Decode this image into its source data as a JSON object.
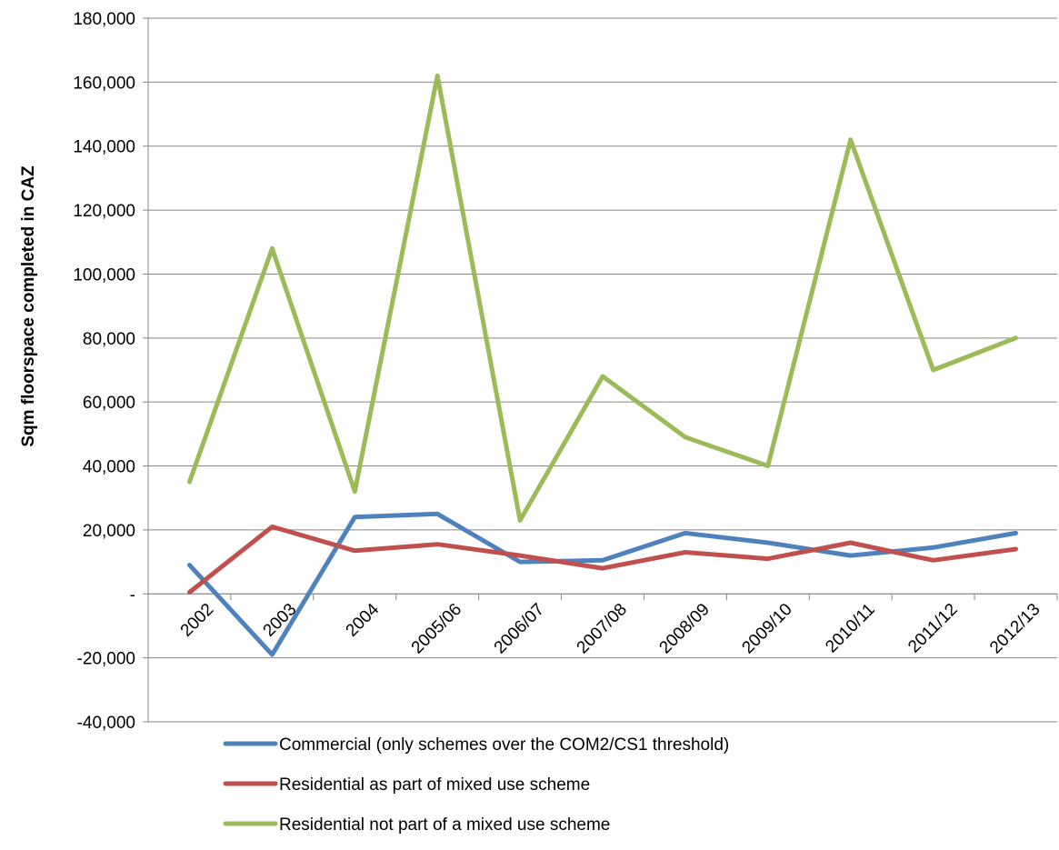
{
  "chart_data": {
    "type": "line",
    "title": "",
    "xlabel": "",
    "ylabel": "Sqm floorspace completed in CAZ",
    "ylim": [
      -40000,
      180000
    ],
    "yticks": [
      180000,
      160000,
      140000,
      120000,
      100000,
      80000,
      60000,
      40000,
      20000,
      0,
      -20000,
      -40000
    ],
    "ytick_labels": [
      "180,000",
      "160,000",
      "140,000",
      "120,000",
      "100,000",
      "80,000",
      "60,000",
      "40,000",
      "20,000",
      "-",
      "-20,000",
      "-40,000"
    ],
    "categories": [
      "2002",
      "2003",
      "2004",
      "2005/06",
      "2006/07",
      "2007/08",
      "2008/09",
      "2009/10",
      "2010/11",
      "2011/12",
      "2012/13"
    ],
    "grid": "horizontal",
    "legend_position": "bottom",
    "series": [
      {
        "name": "Commercial (only schemes over the COM2/CS1 threshold)",
        "color": "#4F81BD",
        "values": [
          9000,
          -19000,
          24000,
          25000,
          10000,
          10500,
          19000,
          16000,
          12000,
          14500,
          19000
        ]
      },
      {
        "name": "Residential as part of mixed use scheme",
        "color": "#C0504D",
        "values": [
          500,
          21000,
          13500,
          15500,
          12000,
          8000,
          13000,
          11000,
          16000,
          10500,
          14000
        ]
      },
      {
        "name": "Residential not part of a mixed use scheme",
        "color": "#9BBB59",
        "values": [
          35000,
          108000,
          32000,
          162000,
          23000,
          68000,
          49000,
          40000,
          142000,
          70000,
          80000
        ]
      }
    ]
  }
}
